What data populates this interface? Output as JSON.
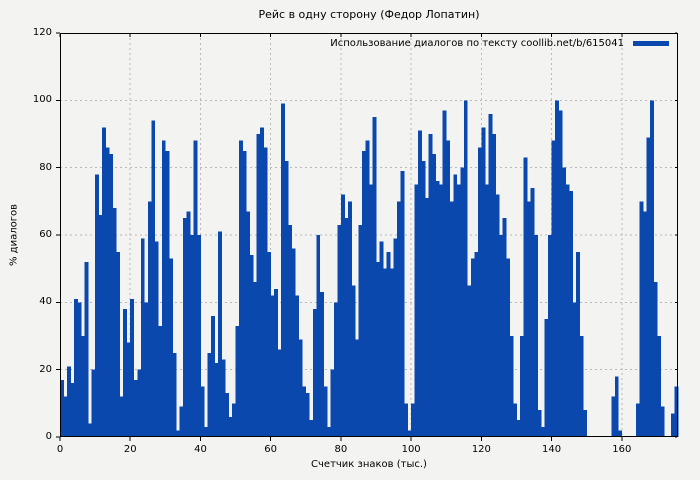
{
  "page": {
    "background": "#f3f3f1"
  },
  "chart_data": {
    "type": "bar",
    "title": "Рейс в одну сторону (Федор Лопатин)",
    "xlabel": "Счетчик знаков (тыс.)",
    "ylabel": "% диалогов",
    "legend": [
      {
        "label": "Использование диалогов по тексту coollib.net/b/615041",
        "color": "#0b48ad"
      }
    ],
    "legend_position": "top-right-inside",
    "grid": true,
    "xlim": [
      0,
      176
    ],
    "ylim": [
      0,
      120
    ],
    "xticks": [
      0,
      20,
      40,
      60,
      80,
      100,
      120,
      140,
      160
    ],
    "yticks": [
      0,
      20,
      40,
      60,
      80,
      100,
      120
    ],
    "x_start": 0,
    "x_step": 1,
    "values": [
      17,
      12,
      21,
      16,
      41,
      40,
      30,
      52,
      4,
      20,
      78,
      66,
      92,
      86,
      84,
      68,
      55,
      12,
      38,
      28,
      41,
      17,
      20,
      59,
      40,
      70,
      94,
      58,
      33,
      88,
      85,
      53,
      25,
      2,
      9,
      65,
      67,
      60,
      88,
      60,
      15,
      3,
      25,
      36,
      22,
      61,
      23,
      13,
      6,
      10,
      33,
      88,
      85,
      67,
      54,
      46,
      90,
      92,
      86,
      55,
      42,
      44,
      26,
      99,
      82,
      63,
      56,
      42,
      29,
      15,
      13,
      5,
      38,
      60,
      43,
      15,
      3,
      20,
      40,
      63,
      72,
      65,
      70,
      45,
      29,
      63,
      85,
      88,
      75,
      95,
      52,
      58,
      50,
      55,
      50,
      59,
      70,
      79,
      10,
      2,
      10,
      75,
      91,
      82,
      71,
      90,
      84,
      76,
      75,
      97,
      88,
      70,
      78,
      75,
      80,
      100,
      45,
      53,
      55,
      86,
      92,
      75,
      96,
      90,
      72,
      60,
      65,
      53,
      30,
      10,
      5,
      30,
      83,
      70,
      74,
      60,
      8,
      3,
      35,
      60,
      88,
      100,
      97,
      80,
      75,
      73,
      40,
      55,
      30,
      8,
      0,
      0,
      0,
      0,
      0,
      0,
      0,
      12,
      18,
      2,
      0,
      0,
      0,
      0,
      10,
      70,
      67,
      89,
      100,
      46,
      30,
      9,
      0,
      0,
      7,
      15
    ],
    "colors": {
      "bar": "#0b48ad",
      "grid": "#b9b9b9",
      "axis": "#000000",
      "text": "#000000",
      "background": "#f3f3f1"
    }
  }
}
